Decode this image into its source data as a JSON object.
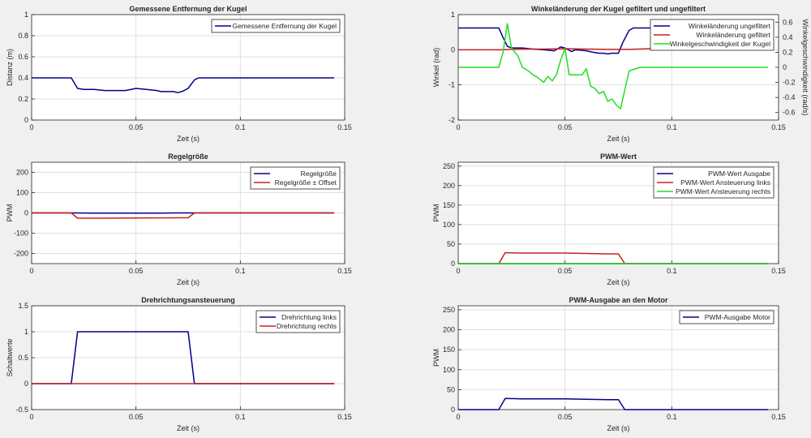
{
  "chart_data": [
    {
      "type": "line",
      "title": "Gemessene Entfernung der Kugel",
      "xlabel": "Zeit (s)",
      "ylabel": "Distanz (m)",
      "xlim": [
        0,
        0.15
      ],
      "ylim": [
        0,
        1
      ],
      "xticks": [
        0,
        0.05,
        0.1,
        0.15
      ],
      "xtick_labels": [
        "0",
        "0.05",
        "0.1",
        "0.15"
      ],
      "yticks": [
        0,
        0.2,
        0.4,
        0.6,
        0.8,
        1
      ],
      "ytick_labels": [
        "0",
        "0.2",
        "0.4",
        "0.6",
        "0.8",
        "1"
      ],
      "grid": true,
      "legend": "top-right",
      "series": [
        {
          "name": "Gemessene Entfernung der Kugel",
          "color": "#00008b",
          "x": [
            0,
            0.019,
            0.022,
            0.025,
            0.03,
            0.035,
            0.04,
            0.045,
            0.05,
            0.055,
            0.06,
            0.062,
            0.065,
            0.068,
            0.07,
            0.072,
            0.075,
            0.078,
            0.08,
            0.085,
            0.09,
            0.1,
            0.12,
            0.145
          ],
          "y": [
            0.4,
            0.4,
            0.3,
            0.29,
            0.29,
            0.28,
            0.28,
            0.28,
            0.3,
            0.29,
            0.28,
            0.27,
            0.27,
            0.27,
            0.26,
            0.27,
            0.3,
            0.38,
            0.4,
            0.4,
            0.4,
            0.4,
            0.4,
            0.4
          ]
        }
      ]
    },
    {
      "type": "line",
      "title": "Winkeländerung der Kugel gefiltert und ungefiltert",
      "xlabel": "Zeit (s)",
      "ylabel": "Winkel (rad)",
      "ylabel_right": "Winkelgeschwindigkeit (rad/s)",
      "xlim": [
        0,
        0.15
      ],
      "ylim": [
        -2,
        1
      ],
      "ylim_right": [
        -0.7,
        0.7
      ],
      "xticks": [
        0,
        0.05,
        0.1,
        0.15
      ],
      "xtick_labels": [
        "0",
        "0.05",
        "0.1",
        "0.15"
      ],
      "yticks": [
        -2,
        -1,
        0,
        1
      ],
      "ytick_labels": [
        "-2",
        "-1",
        "0",
        "1"
      ],
      "yticks_right": [
        -0.6,
        -0.4,
        -0.2,
        0,
        0.2,
        0.4,
        0.6
      ],
      "ytick_labels_right": [
        "-0.6",
        "-0.4",
        "-0.2",
        "0",
        "0.2",
        "0.4",
        "0.6"
      ],
      "grid": true,
      "legend": "top-right",
      "series": [
        {
          "name": "Winkeländerung ungefiltert",
          "color": "#00008b",
          "axis": "left",
          "x": [
            0,
            0.019,
            0.021,
            0.023,
            0.025,
            0.03,
            0.035,
            0.04,
            0.045,
            0.048,
            0.05,
            0.053,
            0.055,
            0.06,
            0.063,
            0.066,
            0.068,
            0.07,
            0.072,
            0.075,
            0.077,
            0.08,
            0.082,
            0.09,
            0.12,
            0.145
          ],
          "y": [
            0.62,
            0.62,
            0.35,
            0.1,
            0.05,
            0.05,
            0.02,
            0.0,
            -0.03,
            0.08,
            0.05,
            -0.05,
            0.0,
            -0.03,
            -0.07,
            -0.1,
            -0.1,
            -0.12,
            -0.1,
            -0.1,
            0.2,
            0.55,
            0.62,
            0.62,
            0.62,
            0.62
          ]
        },
        {
          "name": "Winkeländerung gefiltert",
          "color": "#cc2020",
          "axis": "left",
          "x": [
            0,
            0.02,
            0.03,
            0.04,
            0.05,
            0.06,
            0.07,
            0.08,
            0.09,
            0.1,
            0.11,
            0.12,
            0.13,
            0.145
          ],
          "y": [
            0,
            0,
            0.02,
            0.02,
            0.03,
            0.02,
            0.01,
            0.01,
            0.03,
            0.05,
            0.08,
            0.1,
            0.13,
            0.17
          ]
        },
        {
          "name": "Winkelgeschwindigkeit der Kugel",
          "color": "#22dd22",
          "axis": "right",
          "x": [
            0,
            0.019,
            0.021,
            0.023,
            0.025,
            0.026,
            0.028,
            0.03,
            0.033,
            0.035,
            0.037,
            0.04,
            0.042,
            0.044,
            0.046,
            0.048,
            0.05,
            0.052,
            0.055,
            0.058,
            0.06,
            0.062,
            0.064,
            0.066,
            0.068,
            0.07,
            0.072,
            0.074,
            0.076,
            0.078,
            0.08,
            0.085,
            0.1,
            0.145
          ],
          "y": [
            0,
            0,
            0.2,
            0.58,
            0.25,
            0.22,
            0.15,
            0.0,
            -0.05,
            -0.1,
            -0.13,
            -0.2,
            -0.12,
            -0.18,
            -0.1,
            0.1,
            0.25,
            -0.1,
            -0.1,
            -0.1,
            -0.02,
            -0.25,
            -0.28,
            -0.35,
            -0.32,
            -0.45,
            -0.42,
            -0.5,
            -0.55,
            -0.3,
            -0.05,
            0,
            0,
            0
          ]
        }
      ]
    },
    {
      "type": "line",
      "title": "Regelgröße",
      "xlabel": "Zeit (s)",
      "ylabel": "PWM",
      "xlim": [
        0,
        0.15
      ],
      "ylim": [
        -250,
        250
      ],
      "xticks": [
        0,
        0.05,
        0.1,
        0.15
      ],
      "xtick_labels": [
        "0",
        "0.05",
        "0.1",
        "0.15"
      ],
      "yticks": [
        -200,
        -100,
        0,
        100,
        200
      ],
      "ytick_labels": [
        "-200",
        "-100",
        "0",
        "100",
        "200"
      ],
      "grid": true,
      "legend": "top-right",
      "series": [
        {
          "name": "Regelgröße",
          "color": "#00008b",
          "x": [
            0,
            0.02,
            0.03,
            0.04,
            0.05,
            0.06,
            0.07,
            0.076,
            0.08,
            0.1,
            0.145
          ],
          "y": [
            0,
            0,
            -1,
            -1,
            -1,
            -1,
            0,
            0,
            0,
            0,
            0
          ]
        },
        {
          "name": "Regelgröße ± Offset",
          "color": "#cc2020",
          "x": [
            0,
            0.019,
            0.022,
            0.03,
            0.05,
            0.07,
            0.075,
            0.078,
            0.09,
            0.145
          ],
          "y": [
            0,
            0,
            -26,
            -26,
            -25,
            -24,
            -24,
            0,
            0,
            0
          ]
        }
      ]
    },
    {
      "type": "line",
      "title": "PWM-Wert",
      "xlabel": "Zeit (s)",
      "ylabel": "PWM",
      "xlim": [
        0,
        0.15
      ],
      "ylim": [
        0,
        260
      ],
      "xticks": [
        0,
        0.05,
        0.1,
        0.15
      ],
      "xtick_labels": [
        "0",
        "0.05",
        "0.1",
        "0.15"
      ],
      "yticks": [
        0,
        50,
        100,
        150,
        200,
        250
      ],
      "ytick_labels": [
        "0",
        "50",
        "100",
        "150",
        "200",
        "250"
      ],
      "grid": true,
      "legend": "top-right",
      "series": [
        {
          "name": "PWM-Wert Ausgabe",
          "color": "#00008b",
          "x": [
            0,
            0.145
          ],
          "y": [
            0,
            0
          ]
        },
        {
          "name": "PWM-Wert Ansteuerung links",
          "color": "#cc2020",
          "x": [
            0,
            0.019,
            0.022,
            0.03,
            0.05,
            0.07,
            0.075,
            0.078,
            0.09,
            0.145
          ],
          "y": [
            0,
            0,
            28,
            27,
            27,
            25,
            25,
            0,
            0,
            0
          ]
        },
        {
          "name": "PWM-Wert Ansteuerung rechts",
          "color": "#22dd22",
          "x": [
            0,
            0.145
          ],
          "y": [
            0,
            0
          ]
        }
      ]
    },
    {
      "type": "line",
      "title": "Drehrichtungsansteuerung",
      "xlabel": "Zeit (s)",
      "ylabel": "Schaltwerte",
      "xlim": [
        0,
        0.15
      ],
      "ylim": [
        -0.5,
        1.5
      ],
      "xticks": [
        0,
        0.05,
        0.1,
        0.15
      ],
      "xtick_labels": [
        "0",
        "0.05",
        "0.1",
        "0.15"
      ],
      "yticks": [
        -0.5,
        0,
        0.5,
        1,
        1.5
      ],
      "ytick_labels": [
        "-0.5",
        "0",
        "0.5",
        "1",
        "1.5"
      ],
      "grid": true,
      "legend": "top-right",
      "series": [
        {
          "name": "Drehrichtung links",
          "color": "#00008b",
          "x": [
            0,
            0.019,
            0.022,
            0.075,
            0.078,
            0.145
          ],
          "y": [
            0,
            0,
            1,
            1,
            0,
            0
          ]
        },
        {
          "name": "Drehrichtung rechts",
          "color": "#cc2020",
          "x": [
            0,
            0.145
          ],
          "y": [
            0,
            0
          ]
        }
      ]
    },
    {
      "type": "line",
      "title": "PWM-Ausgabe an den Motor",
      "xlabel": "Zeit (s)",
      "ylabel": "PWM",
      "xlim": [
        0,
        0.15
      ],
      "ylim": [
        0,
        260
      ],
      "xticks": [
        0,
        0.05,
        0.1,
        0.15
      ],
      "xtick_labels": [
        "0",
        "0.05",
        "0.1",
        "0.15"
      ],
      "yticks": [
        0,
        50,
        100,
        150,
        200,
        250
      ],
      "ytick_labels": [
        "0",
        "50",
        "100",
        "150",
        "200",
        "250"
      ],
      "grid": true,
      "legend": "top-right",
      "series": [
        {
          "name": "PWM-Ausgabe Motor",
          "color": "#00008b",
          "x": [
            0,
            0.019,
            0.022,
            0.03,
            0.05,
            0.07,
            0.075,
            0.078,
            0.09,
            0.145
          ],
          "y": [
            0,
            0,
            28,
            27,
            27,
            25,
            25,
            0,
            0,
            0
          ]
        }
      ]
    }
  ]
}
